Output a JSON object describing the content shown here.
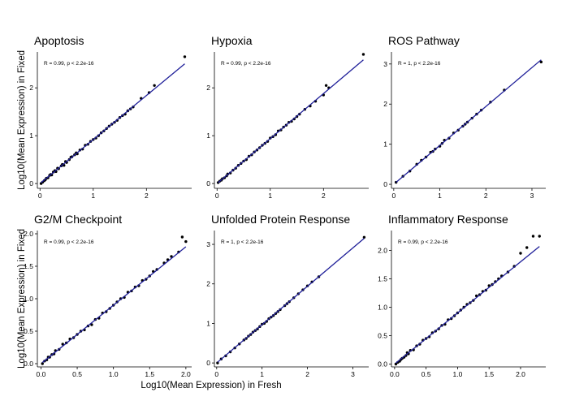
{
  "figure": {
    "xlabel": "Log10(Mean Expression) in Fresh",
    "ylabel": "Log10(Mean Expression) in Fixed"
  },
  "colors": {
    "point": "#000000",
    "line": "#1f1f99",
    "axis": "#000000"
  },
  "chart_data": [
    {
      "type": "scatter",
      "title": "Apoptosis",
      "annotation": "R = 0.99, p < 2.2e-16",
      "xlim": [
        -0.05,
        2.85
      ],
      "ylim": [
        -0.1,
        2.75
      ],
      "xticks": [
        0,
        1,
        2
      ],
      "yticks": [
        0,
        1,
        2
      ],
      "fit": {
        "slope": 0.92,
        "intercept": 0.0
      },
      "points": [
        [
          0.02,
          0.0
        ],
        [
          0.05,
          0.03
        ],
        [
          0.08,
          0.06
        ],
        [
          0.1,
          0.08
        ],
        [
          0.12,
          0.11
        ],
        [
          0.15,
          0.12
        ],
        [
          0.18,
          0.17
        ],
        [
          0.2,
          0.19
        ],
        [
          0.22,
          0.18
        ],
        [
          0.25,
          0.24
        ],
        [
          0.28,
          0.27
        ],
        [
          0.3,
          0.25
        ],
        [
          0.33,
          0.32
        ],
        [
          0.35,
          0.31
        ],
        [
          0.4,
          0.37
        ],
        [
          0.42,
          0.4
        ],
        [
          0.45,
          0.38
        ],
        [
          0.48,
          0.46
        ],
        [
          0.5,
          0.44
        ],
        [
          0.55,
          0.5
        ],
        [
          0.58,
          0.55
        ],
        [
          0.6,
          0.56
        ],
        [
          0.65,
          0.6
        ],
        [
          0.68,
          0.64
        ],
        [
          0.7,
          0.62
        ],
        [
          0.75,
          0.7
        ],
        [
          0.8,
          0.72
        ],
        [
          0.85,
          0.8
        ],
        [
          0.9,
          0.82
        ],
        [
          0.95,
          0.88
        ],
        [
          1.0,
          0.92
        ],
        [
          1.05,
          0.95
        ],
        [
          1.1,
          1.0
        ],
        [
          1.15,
          1.06
        ],
        [
          1.2,
          1.1
        ],
        [
          1.25,
          1.15
        ],
        [
          1.3,
          1.2
        ],
        [
          1.35,
          1.24
        ],
        [
          1.4,
          1.28
        ],
        [
          1.45,
          1.32
        ],
        [
          1.5,
          1.38
        ],
        [
          1.55,
          1.42
        ],
        [
          1.6,
          1.45
        ],
        [
          1.65,
          1.52
        ],
        [
          1.7,
          1.56
        ],
        [
          1.75,
          1.6
        ],
        [
          1.9,
          1.78
        ],
        [
          2.05,
          1.9
        ],
        [
          2.15,
          2.05
        ],
        [
          2.72,
          2.65
        ]
      ]
    },
    {
      "type": "scatter",
      "title": "Hypoxia",
      "annotation": "R = 0.99, p < 2.2e-16",
      "xlim": [
        -0.05,
        2.85
      ],
      "ylim": [
        -0.1,
        2.75
      ],
      "xticks": [
        0,
        1,
        2
      ],
      "yticks": [
        0,
        1,
        2
      ],
      "fit": {
        "slope": 0.94,
        "intercept": 0.0
      },
      "points": [
        [
          0.02,
          0.02
        ],
        [
          0.05,
          0.05
        ],
        [
          0.08,
          0.07
        ],
        [
          0.1,
          0.1
        ],
        [
          0.14,
          0.12
        ],
        [
          0.18,
          0.16
        ],
        [
          0.2,
          0.2
        ],
        [
          0.25,
          0.22
        ],
        [
          0.3,
          0.28
        ],
        [
          0.35,
          0.32
        ],
        [
          0.4,
          0.38
        ],
        [
          0.45,
          0.42
        ],
        [
          0.5,
          0.47
        ],
        [
          0.55,
          0.5
        ],
        [
          0.6,
          0.57
        ],
        [
          0.65,
          0.6
        ],
        [
          0.7,
          0.66
        ],
        [
          0.75,
          0.7
        ],
        [
          0.8,
          0.75
        ],
        [
          0.85,
          0.8
        ],
        [
          0.9,
          0.84
        ],
        [
          0.95,
          0.88
        ],
        [
          1.0,
          0.95
        ],
        [
          1.05,
          0.98
        ],
        [
          1.1,
          1.02
        ],
        [
          1.15,
          1.1
        ],
        [
          1.2,
          1.12
        ],
        [
          1.25,
          1.18
        ],
        [
          1.3,
          1.22
        ],
        [
          1.35,
          1.28
        ],
        [
          1.4,
          1.3
        ],
        [
          1.45,
          1.35
        ],
        [
          1.5,
          1.4
        ],
        [
          1.55,
          1.45
        ],
        [
          1.65,
          1.55
        ],
        [
          1.75,
          1.62
        ],
        [
          1.85,
          1.72
        ],
        [
          2.0,
          1.85
        ],
        [
          2.05,
          2.05
        ],
        [
          2.1,
          2.0
        ],
        [
          2.75,
          2.7
        ]
      ]
    },
    {
      "type": "scatter",
      "title": "ROS Pathway",
      "annotation": "R = 1, p < 2.2e-16",
      "xlim": [
        -0.05,
        3.3
      ],
      "ylim": [
        -0.1,
        3.3
      ],
      "xticks": [
        0,
        1,
        2,
        3
      ],
      "yticks": [
        0,
        1,
        2,
        3
      ],
      "fit": {
        "slope": 0.97,
        "intercept": 0.0
      },
      "points": [
        [
          0.05,
          0.05
        ],
        [
          0.2,
          0.2
        ],
        [
          0.35,
          0.33
        ],
        [
          0.5,
          0.5
        ],
        [
          0.6,
          0.6
        ],
        [
          0.7,
          0.68
        ],
        [
          0.8,
          0.8
        ],
        [
          0.85,
          0.82
        ],
        [
          0.9,
          0.88
        ],
        [
          1.0,
          0.95
        ],
        [
          1.05,
          1.02
        ],
        [
          1.1,
          1.1
        ],
        [
          1.2,
          1.15
        ],
        [
          1.3,
          1.28
        ],
        [
          1.4,
          1.35
        ],
        [
          1.5,
          1.45
        ],
        [
          1.55,
          1.5
        ],
        [
          1.6,
          1.55
        ],
        [
          1.7,
          1.65
        ],
        [
          1.8,
          1.75
        ],
        [
          1.9,
          1.85
        ],
        [
          2.1,
          2.05
        ],
        [
          2.4,
          2.35
        ],
        [
          3.2,
          3.05
        ]
      ]
    },
    {
      "type": "scatter",
      "title": "G2/M Checkpoint",
      "annotation": "R = 0.99, p < 2.2e-16",
      "xlim": [
        -0.05,
        2.08
      ],
      "ylim": [
        -0.05,
        2.05
      ],
      "xticks": [
        0.0,
        0.5,
        1.0,
        1.5,
        2.0
      ],
      "yticks": [
        0.0,
        0.5,
        1.0,
        1.5,
        2.0
      ],
      "fit": {
        "slope": 0.9,
        "intercept": 0.0
      },
      "points": [
        [
          0.02,
          0.0
        ],
        [
          0.05,
          0.04
        ],
        [
          0.08,
          0.06
        ],
        [
          0.1,
          0.1
        ],
        [
          0.12,
          0.1
        ],
        [
          0.15,
          0.14
        ],
        [
          0.18,
          0.15
        ],
        [
          0.2,
          0.2
        ],
        [
          0.25,
          0.22
        ],
        [
          0.3,
          0.3
        ],
        [
          0.35,
          0.32
        ],
        [
          0.4,
          0.38
        ],
        [
          0.45,
          0.4
        ],
        [
          0.5,
          0.45
        ],
        [
          0.55,
          0.5
        ],
        [
          0.6,
          0.52
        ],
        [
          0.65,
          0.58
        ],
        [
          0.7,
          0.6
        ],
        [
          0.75,
          0.68
        ],
        [
          0.8,
          0.7
        ],
        [
          0.85,
          0.78
        ],
        [
          0.9,
          0.8
        ],
        [
          0.95,
          0.85
        ],
        [
          1.0,
          0.9
        ],
        [
          1.05,
          0.95
        ],
        [
          1.1,
          1.0
        ],
        [
          1.15,
          1.02
        ],
        [
          1.2,
          1.1
        ],
        [
          1.25,
          1.12
        ],
        [
          1.3,
          1.18
        ],
        [
          1.35,
          1.2
        ],
        [
          1.4,
          1.28
        ],
        [
          1.45,
          1.3
        ],
        [
          1.5,
          1.35
        ],
        [
          1.55,
          1.42
        ],
        [
          1.6,
          1.45
        ],
        [
          1.7,
          1.55
        ],
        [
          1.75,
          1.6
        ],
        [
          1.8,
          1.65
        ],
        [
          1.9,
          1.72
        ],
        [
          1.95,
          1.95
        ],
        [
          2.0,
          1.88
        ]
      ]
    },
    {
      "type": "scatter",
      "title": "Unfolded Protein Response",
      "annotation": "R = 1, p < 2.2e-16",
      "xlim": [
        -0.05,
        3.35
      ],
      "ylim": [
        -0.1,
        3.35
      ],
      "xticks": [
        0,
        1,
        2,
        3
      ],
      "yticks": [
        0,
        1,
        2,
        3
      ],
      "fit": {
        "slope": 0.97,
        "intercept": 0.0
      },
      "points": [
        [
          0.02,
          0.0
        ],
        [
          0.1,
          0.1
        ],
        [
          0.2,
          0.18
        ],
        [
          0.3,
          0.28
        ],
        [
          0.4,
          0.38
        ],
        [
          0.5,
          0.48
        ],
        [
          0.6,
          0.58
        ],
        [
          0.65,
          0.62
        ],
        [
          0.7,
          0.68
        ],
        [
          0.75,
          0.72
        ],
        [
          0.8,
          0.78
        ],
        [
          0.85,
          0.82
        ],
        [
          0.9,
          0.86
        ],
        [
          0.95,
          0.92
        ],
        [
          1.0,
          0.98
        ],
        [
          1.05,
          1.0
        ],
        [
          1.1,
          1.05
        ],
        [
          1.15,
          1.12
        ],
        [
          1.2,
          1.16
        ],
        [
          1.25,
          1.2
        ],
        [
          1.3,
          1.25
        ],
        [
          1.35,
          1.3
        ],
        [
          1.4,
          1.35
        ],
        [
          1.5,
          1.45
        ],
        [
          1.55,
          1.5
        ],
        [
          1.6,
          1.55
        ],
        [
          1.7,
          1.65
        ],
        [
          1.8,
          1.75
        ],
        [
          1.9,
          1.85
        ],
        [
          2.0,
          1.95
        ],
        [
          2.1,
          2.05
        ],
        [
          2.25,
          2.18
        ],
        [
          3.25,
          3.18
        ]
      ]
    },
    {
      "type": "scatter",
      "title": "Inflammatory Response",
      "annotation": "R = 0.99, p < 2.2e-16",
      "xlim": [
        -0.05,
        2.4
      ],
      "ylim": [
        -0.05,
        2.35
      ],
      "xticks": [
        0.0,
        0.5,
        1.0,
        1.5,
        2.0
      ],
      "yticks": [
        0.0,
        0.5,
        1.0,
        1.5,
        2.0
      ],
      "fit": {
        "slope": 0.9,
        "intercept": 0.0
      },
      "points": [
        [
          0.02,
          0.0
        ],
        [
          0.05,
          0.03
        ],
        [
          0.08,
          0.05
        ],
        [
          0.1,
          0.08
        ],
        [
          0.12,
          0.1
        ],
        [
          0.15,
          0.12
        ],
        [
          0.18,
          0.15
        ],
        [
          0.2,
          0.2
        ],
        [
          0.22,
          0.18
        ],
        [
          0.25,
          0.24
        ],
        [
          0.3,
          0.25
        ],
        [
          0.35,
          0.32
        ],
        [
          0.4,
          0.35
        ],
        [
          0.45,
          0.42
        ],
        [
          0.5,
          0.45
        ],
        [
          0.55,
          0.48
        ],
        [
          0.6,
          0.55
        ],
        [
          0.65,
          0.58
        ],
        [
          0.7,
          0.62
        ],
        [
          0.75,
          0.68
        ],
        [
          0.8,
          0.7
        ],
        [
          0.85,
          0.78
        ],
        [
          0.9,
          0.8
        ],
        [
          0.95,
          0.85
        ],
        [
          1.0,
          0.9
        ],
        [
          1.05,
          0.95
        ],
        [
          1.1,
          1.0
        ],
        [
          1.15,
          1.05
        ],
        [
          1.2,
          1.08
        ],
        [
          1.25,
          1.12
        ],
        [
          1.3,
          1.2
        ],
        [
          1.35,
          1.22
        ],
        [
          1.4,
          1.28
        ],
        [
          1.45,
          1.3
        ],
        [
          1.5,
          1.38
        ],
        [
          1.55,
          1.4
        ],
        [
          1.6,
          1.45
        ],
        [
          1.65,
          1.5
        ],
        [
          1.7,
          1.55
        ],
        [
          1.8,
          1.62
        ],
        [
          1.9,
          1.72
        ],
        [
          2.0,
          1.95
        ],
        [
          2.1,
          2.05
        ],
        [
          2.2,
          2.25
        ],
        [
          2.3,
          2.25
        ]
      ]
    }
  ]
}
